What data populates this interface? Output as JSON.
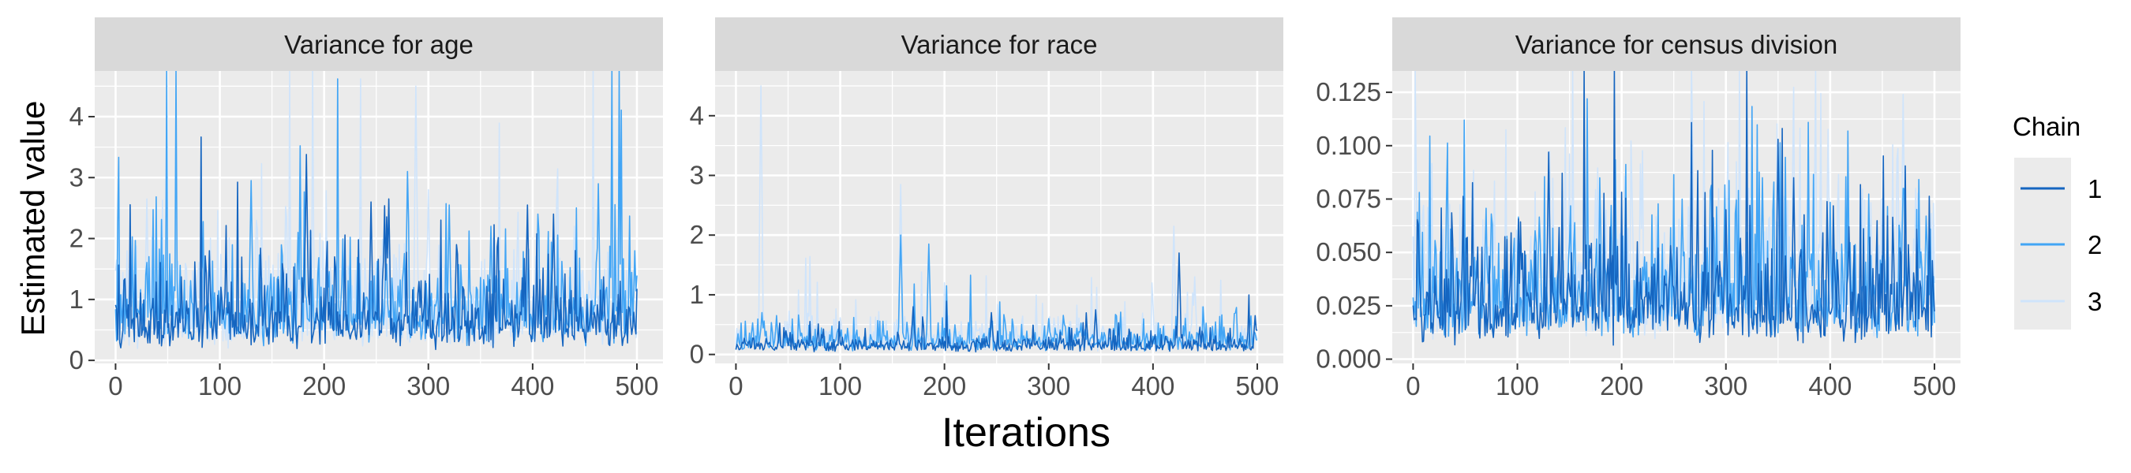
{
  "chart_data": {
    "type": "line",
    "xlabel": "Iterations",
    "ylabel": "Estimated value",
    "legend": {
      "title": "Chain",
      "position": "right",
      "entries": [
        "1",
        "2",
        "3"
      ]
    },
    "series_colors": {
      "1": "#1565c0",
      "2": "#42a5f5",
      "3": "#cfe4fb"
    },
    "grid": true,
    "panels": [
      {
        "title": "Variance for age",
        "xlim": [
          -20,
          525
        ],
        "ylim": [
          -0.05,
          4.75
        ],
        "x_ticks": [
          0,
          100,
          200,
          300,
          400,
          500
        ],
        "x_tick_labels": [
          "0",
          "100",
          "200",
          "300",
          "400",
          "500"
        ],
        "y_ticks": [
          0,
          1,
          2,
          3,
          4
        ],
        "y_tick_labels": [
          "0",
          "1",
          "2",
          "3",
          "4"
        ],
        "trace": {
          "iterations": 500,
          "typical": {
            "1": 0.6,
            "2": 0.8,
            "3": 0.75
          },
          "spikes": {
            "1": [
              [
                183,
                3.38
              ],
              [
                245,
                2.6
              ],
              [
                262,
                2.65
              ],
              [
                395,
                2.55
              ],
              [
                420,
                2.4
              ],
              [
                90,
                1.8
              ],
              [
                327,
                1.9
              ]
            ],
            "2": [
              [
                130,
                2.95
              ],
              [
                280,
                3.1
              ],
              [
                320,
                2.55
              ],
              [
                463,
                2.9
              ],
              [
                405,
                2.4
              ],
              [
                360,
                2.2
              ],
              [
                175,
                2.1
              ],
              [
                498,
                1.8
              ]
            ],
            "3": [
              [
                288,
                4.5
              ],
              [
                30,
                2.65
              ],
              [
                135,
                2.3
              ],
              [
                300,
                2.8
              ],
              [
                440,
                2.2
              ]
            ]
          }
        }
      },
      {
        "title": "Variance for race",
        "xlim": [
          -20,
          525
        ],
        "ylim": [
          -0.15,
          4.75
        ],
        "x_ticks": [
          0,
          100,
          200,
          300,
          400,
          500
        ],
        "x_tick_labels": [
          "0",
          "100",
          "200",
          "300",
          "400",
          "500"
        ],
        "y_ticks": [
          0,
          1,
          2,
          3,
          4
        ],
        "y_tick_labels": [
          "0",
          "1",
          "2",
          "3",
          "4"
        ],
        "trace": {
          "iterations": 500,
          "typical": {
            "1": 0.15,
            "2": 0.22,
            "3": 0.25
          },
          "spikes": {
            "1": [
              [
                425,
                1.7
              ],
              [
                170,
                0.8
              ],
              [
                245,
                0.7
              ],
              [
                345,
                0.75
              ],
              [
                498,
                0.65
              ]
            ],
            "2": [
              [
                158,
                2.0
              ],
              [
                185,
                1.85
              ],
              [
                25,
                0.7
              ],
              [
                300,
                0.6
              ]
            ],
            "3": [
              [
                24,
                4.5
              ],
              [
                158,
                2.85
              ],
              [
                420,
                2.15
              ],
              [
                440,
                1.3
              ]
            ]
          }
        }
      },
      {
        "title": "Variance for census division",
        "xlim": [
          -20,
          525
        ],
        "ylim": [
          -0.002,
          0.135
        ],
        "x_ticks": [
          0,
          100,
          200,
          300,
          400,
          500
        ],
        "x_tick_labels": [
          "0",
          "100",
          "200",
          "300",
          "400",
          "500"
        ],
        "y_ticks": [
          0,
          0.025,
          0.05,
          0.075,
          0.1,
          0.125
        ],
        "y_tick_labels": [
          "0.000",
          "0.025",
          "0.050",
          "0.075",
          "0.100",
          "0.125"
        ],
        "trace": {
          "iterations": 500,
          "typical": {
            "1": 0.025,
            "2": 0.03,
            "3": 0.032
          },
          "spikes": {
            "1": [
              [
                130,
                0.097
              ],
              [
                350,
                0.103
              ],
              [
                365,
                0.085
              ],
              [
                300,
                0.07
              ],
              [
                418,
                0.062
              ],
              [
                5,
                0.063
              ]
            ],
            "2": [
              [
                470,
                0.08
              ],
              [
                190,
                0.072
              ],
              [
                258,
                0.075
              ],
              [
                335,
                0.085
              ],
              [
                75,
                0.068
              ],
              [
                492,
                0.067
              ]
            ],
            "3": [
              [
                470,
                0.124
              ],
              [
                10,
                0.072
              ],
              [
                150,
                0.075
              ],
              [
                285,
                0.07
              ],
              [
                482,
                0.08
              ]
            ]
          }
        }
      }
    ]
  }
}
